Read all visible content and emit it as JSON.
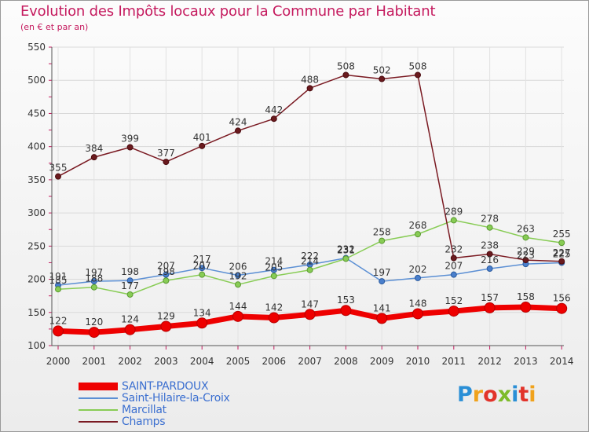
{
  "chart_data": {
    "type": "line",
    "title": "Evolution des Impôts locaux pour la Commune par Habitant",
    "subtitle": "(en € et par an)",
    "xlabel": "",
    "ylabel": "",
    "ylim": [
      100,
      550
    ],
    "yticks": [
      100,
      150,
      200,
      250,
      300,
      350,
      400,
      450,
      500,
      550
    ],
    "grid": true,
    "legend_position": "bottom-left",
    "categories": [
      "2000",
      "2001",
      "2002",
      "2003",
      "2004",
      "2005",
      "2006",
      "2007",
      "2008",
      "2009",
      "2010",
      "2011",
      "2012",
      "2013",
      "2014"
    ],
    "series": [
      {
        "name": "SAINT-PARDOUX",
        "color": "#ee0000",
        "values": [
          122,
          120,
          124,
          129,
          134,
          144,
          142,
          147,
          153,
          141,
          148,
          152,
          157,
          158,
          156
        ]
      },
      {
        "name": "Saint-Hilaire-la-Croix",
        "color": "#5b8fd4",
        "values": [
          191,
          197,
          198,
          207,
          217,
          206,
          214,
          222,
          232,
          197,
          202,
          207,
          216,
          223,
          225
        ]
      },
      {
        "name": "Marcillat",
        "color": "#88cc55",
        "values": [
          185,
          188,
          177,
          198,
          207,
          192,
          205,
          214,
          231,
          258,
          268,
          289,
          278,
          263,
          255
        ]
      },
      {
        "name": "Champs",
        "color": "#7a1a22",
        "values": [
          355,
          384,
          399,
          377,
          401,
          424,
          442,
          488,
          508,
          502,
          508,
          232,
          238,
          229,
          227
        ]
      }
    ]
  },
  "logo": {
    "letters": [
      "P",
      "r",
      "o",
      "x",
      "i",
      "t",
      "i"
    ]
  }
}
